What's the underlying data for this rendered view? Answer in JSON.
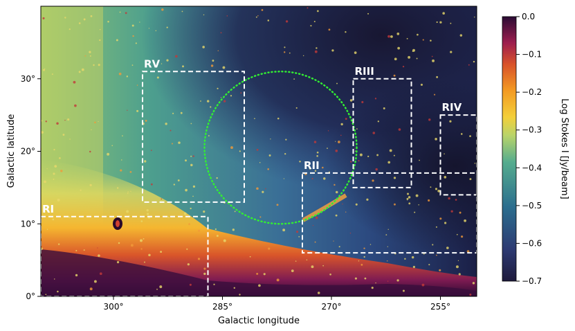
{
  "chart_data": {
    "type": "heatmap",
    "title": "",
    "xlabel": "Galactic longitude",
    "ylabel": "Galactic latitude",
    "x_unit": "deg",
    "y_unit": "deg",
    "x_axis_reversed": true,
    "xlim": [
      310,
      250
    ],
    "ylim": [
      0,
      40
    ],
    "xticks": [
      {
        "value": 300,
        "label": "300°"
      },
      {
        "value": 285,
        "label": "285°"
      },
      {
        "value": 270,
        "label": "270°"
      },
      {
        "value": 255,
        "label": "255°"
      }
    ],
    "yticks": [
      {
        "value": 0,
        "label": "0°"
      },
      {
        "value": 10,
        "label": "10°"
      },
      {
        "value": 20,
        "label": "20°"
      },
      {
        "value": 30,
        "label": "30°"
      }
    ],
    "colorbar": {
      "label": "Log Stokes I [Jy/beam]",
      "min": -0.7,
      "max": 0.0,
      "colormap": "inferno-to-cividis (dark purple → orange → yellow → teal → navy)",
      "ticks": [
        {
          "value": 0.0,
          "label": "0.0"
        },
        {
          "value": -0.1,
          "label": "−0.1"
        },
        {
          "value": -0.2,
          "label": "−0.2"
        },
        {
          "value": -0.3,
          "label": "−0.3"
        },
        {
          "value": -0.4,
          "label": "−0.4"
        },
        {
          "value": -0.5,
          "label": "−0.5"
        },
        {
          "value": -0.6,
          "label": "−0.6"
        },
        {
          "value": -0.7,
          "label": "−0.7"
        }
      ]
    },
    "regions": [
      {
        "name": "RI",
        "l_range": [
          310,
          287
        ],
        "b_range": [
          0,
          11
        ]
      },
      {
        "name": "RII",
        "l_range": [
          274,
          250
        ],
        "b_range": [
          6,
          17
        ]
      },
      {
        "name": "RIII",
        "l_range": [
          267,
          259
        ],
        "b_range": [
          15,
          30
        ]
      },
      {
        "name": "RIV",
        "l_range": [
          255,
          250
        ],
        "b_range": [
          14,
          25
        ]
      },
      {
        "name": "RV",
        "l_range": [
          296,
          282
        ],
        "b_range": [
          13,
          31
        ]
      }
    ],
    "circle": {
      "center_l": 277,
      "center_b": 20.5,
      "radius_deg": 10.5,
      "style": "green dotted"
    }
  },
  "colors": {
    "region_box": "#ffffff",
    "circle": "#33ee33",
    "cmap": [
      "#f7f07a",
      "#f9c233",
      "#f08b28",
      "#d8502a",
      "#a32248",
      "#5f1352",
      "#2a0a3a"
    ],
    "sky_background": [
      "#e6e05a",
      "#a8d07a",
      "#5fae8e",
      "#3a7d9a",
      "#35507e",
      "#2a2e5c",
      "#1a1a38"
    ]
  }
}
